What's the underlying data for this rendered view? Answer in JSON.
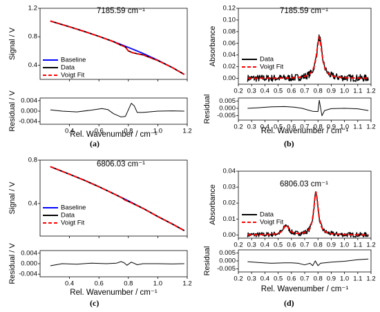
{
  "figure": {
    "panel_labels": [
      "(a)",
      "(b)",
      "(c)",
      "(d)"
    ]
  },
  "chart_data": [
    {
      "id": "a",
      "type": "line",
      "title": "7185.59 cm⁻¹",
      "xlabel": "Rel. Wavenumber / cm⁻¹",
      "main": {
        "ylabel": "Signal / V",
        "xlim": [
          0.2,
          1.2
        ],
        "ylim": [
          0.2,
          1.2
        ],
        "yticks": [
          "0.4",
          "0.8",
          "1.2"
        ],
        "show_x_ticklabels": false,
        "legend": {
          "placement": "bottom-left",
          "entries": [
            "Baseline",
            "Data",
            "Voigt Fit"
          ]
        },
        "series": [
          {
            "name": "Baseline",
            "color": "#0000ff",
            "style": "solid",
            "x": [
              0.27,
              0.4,
              0.5,
              0.6,
              0.7,
              0.75,
              0.8,
              0.85,
              0.9,
              1.0,
              1.1,
              1.18
            ],
            "y": [
              1.02,
              0.94,
              0.875,
              0.805,
              0.73,
              0.69,
              0.65,
              0.608,
              0.565,
              0.47,
              0.365,
              0.27
            ]
          },
          {
            "name": "Data",
            "color": "#000000",
            "style": "solid",
            "x": [
              0.27,
              0.4,
              0.5,
              0.6,
              0.7,
              0.75,
              0.78,
              0.8,
              0.83,
              0.86,
              0.9,
              1.0,
              1.1,
              1.18
            ],
            "y": [
              1.02,
              0.94,
              0.875,
              0.805,
              0.73,
              0.68,
              0.655,
              0.6,
              0.575,
              0.56,
              0.545,
              0.465,
              0.365,
              0.27
            ]
          },
          {
            "name": "Voigt Fit",
            "color": "#ff0000",
            "style": "dashed",
            "x": [
              0.27,
              0.4,
              0.5,
              0.6,
              0.7,
              0.75,
              0.78,
              0.8,
              0.83,
              0.86,
              0.9,
              1.0,
              1.1,
              1.18
            ],
            "y": [
              1.02,
              0.94,
              0.875,
              0.805,
              0.73,
              0.68,
              0.655,
              0.6,
              0.575,
              0.56,
              0.545,
              0.465,
              0.365,
              0.27
            ]
          }
        ]
      },
      "residual": {
        "ylabel": "Residual / V",
        "xlim": [
          0.2,
          1.2
        ],
        "ylim": [
          -0.005,
          0.005
        ],
        "yticks": [
          "0.004",
          "0.000",
          "-0.004"
        ],
        "xticks": [
          "0.4",
          "0.6",
          "0.8",
          "1.0",
          "1.2"
        ],
        "series": [
          {
            "name": "",
            "color": "#000000",
            "x": [
              0.27,
              0.35,
              0.45,
              0.55,
              0.62,
              0.66,
              0.7,
              0.75,
              0.78,
              0.8,
              0.82,
              0.84,
              0.86,
              0.9,
              1.0,
              1.1,
              1.18
            ],
            "y": [
              0.0005,
              0.0,
              -0.0003,
              0.0004,
              0.001,
              0.0006,
              -0.001,
              -0.0022,
              -0.002,
              0.0005,
              0.003,
              0.002,
              -0.0005,
              -0.0005,
              0.0,
              0.0001,
              0.0
            ]
          }
        ]
      }
    },
    {
      "id": "b",
      "type": "line",
      "title": "7185.59 cm⁻¹",
      "xlabel": "Rel. Wavenumber / cm⁻¹",
      "main": {
        "ylabel": "Absorbance",
        "xlim": [
          0.2,
          1.2
        ],
        "ylim": [
          -0.01,
          0.12
        ],
        "yticks": [
          "0.00",
          "0.02",
          "0.04",
          "0.06",
          "0.08",
          "0.10",
          "0.12"
        ],
        "xticks": [
          "0.2",
          "0.3",
          "0.4",
          "0.5",
          "0.6",
          "0.7",
          "0.8",
          "0.9",
          "1.0",
          "1.1",
          "1.2"
        ],
        "legend": {
          "placement": "left",
          "entries": [
            "Data",
            "Voigt Fit"
          ]
        },
        "peaks": [
          {
            "center": 0.81,
            "amplitude": 0.07,
            "width": 0.05
          }
        ],
        "noise": 0.006,
        "x_range": [
          0.27,
          1.18
        ]
      },
      "residual": {
        "ylabel": "Residual",
        "xlim": [
          0.2,
          1.2
        ],
        "ylim": [
          -0.008,
          0.007
        ],
        "yticks": [
          "0.005",
          "0.000",
          "-0.005"
        ],
        "xticks": [
          "0.2",
          "0.3",
          "0.4",
          "0.5",
          "0.6",
          "0.7",
          "0.8",
          "0.9",
          "1.0",
          "1.1",
          "1.2"
        ],
        "series": [
          {
            "name": "",
            "color": "#000000",
            "x": [
              0.27,
              0.35,
              0.45,
              0.55,
              0.62,
              0.68,
              0.72,
              0.76,
              0.8,
              0.81,
              0.83,
              0.85,
              0.9,
              1.0,
              1.1,
              1.18
            ],
            "y": [
              0.0,
              0.0004,
              0.001,
              0.0012,
              0.0008,
              0.0,
              -0.001,
              -0.002,
              -0.0022,
              0.0055,
              -0.005,
              -0.0015,
              -0.0002,
              0.0,
              -0.0003,
              -0.0015
            ]
          }
        ]
      }
    },
    {
      "id": "c",
      "type": "line",
      "title": "6806.03 cm⁻¹",
      "xlabel": "Rel. Wavenumber / cm⁻¹",
      "main": {
        "ylabel": "Signal / V",
        "xlim": [
          0.2,
          1.2
        ],
        "ylim": [
          0.1,
          0.8
        ],
        "yticks": [
          "0.4",
          "0.8"
        ],
        "show_x_ticklabels": false,
        "legend": {
          "placement": "bottom-left",
          "entries": [
            "Baseline",
            "Data",
            "Voigt Fit"
          ]
        },
        "series": [
          {
            "name": "Baseline",
            "color": "#0000ff",
            "style": "solid",
            "x": [
              0.27,
              0.4,
              0.5,
              0.6,
              0.7,
              0.8,
              0.9,
              1.0,
              1.1,
              1.18
            ],
            "y": [
              0.74,
              0.67,
              0.615,
              0.555,
              0.49,
              0.425,
              0.355,
              0.28,
              0.21,
              0.15
            ]
          },
          {
            "name": "Data",
            "color": "#000000",
            "style": "solid",
            "x": [
              0.27,
              0.4,
              0.5,
              0.6,
              0.7,
              0.76,
              0.78,
              0.8,
              0.9,
              1.0,
              1.1,
              1.18
            ],
            "y": [
              0.74,
              0.67,
              0.615,
              0.555,
              0.49,
              0.45,
              0.43,
              0.42,
              0.355,
              0.28,
              0.21,
              0.15
            ]
          },
          {
            "name": "Voigt Fit",
            "color": "#ff0000",
            "style": "dashed",
            "x": [
              0.27,
              0.4,
              0.5,
              0.6,
              0.7,
              0.76,
              0.78,
              0.8,
              0.9,
              1.0,
              1.1,
              1.18
            ],
            "y": [
              0.74,
              0.67,
              0.615,
              0.555,
              0.49,
              0.45,
              0.43,
              0.42,
              0.355,
              0.28,
              0.21,
              0.15
            ]
          }
        ]
      },
      "residual": {
        "ylabel": "Residual / V",
        "xlim": [
          0.2,
          1.2
        ],
        "ylim": [
          -0.005,
          0.005
        ],
        "yticks": [
          "0.004",
          "0.000",
          "-0.004"
        ],
        "xticks": [
          "0.4",
          "0.6",
          "0.8",
          "1.0",
          "1.2"
        ],
        "series": [
          {
            "name": "",
            "color": "#000000",
            "x": [
              0.27,
              0.35,
              0.45,
              0.55,
              0.65,
              0.72,
              0.75,
              0.77,
              0.79,
              0.82,
              0.86,
              0.9,
              1.0,
              1.1,
              1.18
            ],
            "y": [
              -0.0008,
              0.0,
              -0.0002,
              0.0002,
              0.0,
              0.0002,
              0.0008,
              0.0004,
              -0.0006,
              0.0006,
              -0.0004,
              0.0,
              0.0,
              -0.0001,
              0.0
            ]
          }
        ]
      }
    },
    {
      "id": "d",
      "type": "line",
      "title": "6806.03 cm⁻¹",
      "xlabel": "Rel. Wavenumber / cm⁻¹",
      "main": {
        "ylabel": "Absorbance",
        "xlim": [
          0.2,
          1.2
        ],
        "ylim": [
          -0.002,
          0.04
        ],
        "yticks": [
          "0.00",
          "0.01",
          "0.02",
          "0.03",
          "0.04"
        ],
        "xticks": [
          "0.2",
          "0.3",
          "0.4",
          "0.5",
          "0.6",
          "0.7",
          "0.8",
          "0.9",
          "1.0",
          "1.1",
          "1.2"
        ],
        "legend": {
          "placement": "bottom-left",
          "entries": [
            "Data",
            "Voigt Fit"
          ]
        },
        "peaks": [
          {
            "center": 0.56,
            "amplitude": 0.006,
            "width": 0.05
          },
          {
            "center": 0.785,
            "amplitude": 0.027,
            "width": 0.04
          }
        ],
        "noise": 0.0015,
        "x_range": [
          0.27,
          1.18
        ]
      },
      "residual": {
        "ylabel": "Residual",
        "xlim": [
          0.2,
          1.2
        ],
        "ylim": [
          -0.007,
          0.007
        ],
        "yticks": [
          "0.005",
          "0.000",
          "-0.005"
        ],
        "xticks": [
          "0.2",
          "0.3",
          "0.4",
          "0.5",
          "0.6",
          "0.7",
          "0.8",
          "0.9",
          "1.0",
          "1.1",
          "1.2"
        ],
        "series": [
          {
            "name": "",
            "color": "#000000",
            "x": [
              0.27,
              0.35,
              0.45,
              0.55,
              0.6,
              0.65,
              0.7,
              0.74,
              0.76,
              0.78,
              0.8,
              0.82,
              0.85,
              0.9,
              1.0,
              1.1,
              1.18
            ],
            "y": [
              -0.0005,
              -0.001,
              -0.0015,
              -0.0012,
              -0.0012,
              -0.0015,
              -0.0025,
              -0.0015,
              -0.003,
              0.0,
              -0.003,
              -0.0015,
              -0.0012,
              -0.0008,
              -0.0002,
              0.0008,
              0.0012
            ]
          }
        ]
      }
    }
  ]
}
